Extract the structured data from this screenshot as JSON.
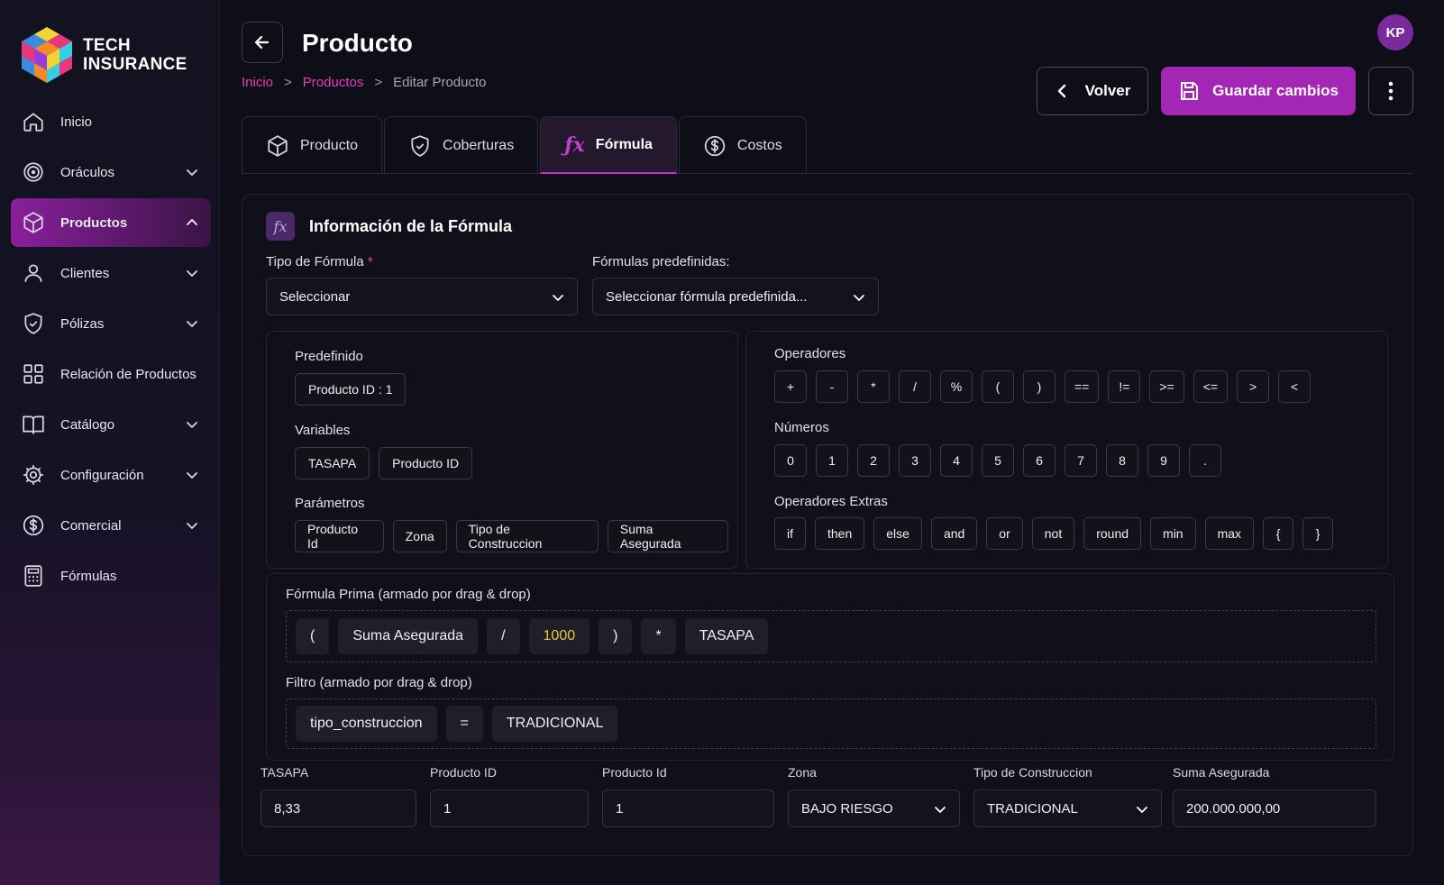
{
  "brand": {
    "line1": "TECH",
    "line2": "INSURANCE"
  },
  "sidebar": {
    "items": [
      {
        "label": "Inicio",
        "icon": "home-icon",
        "chevron": false,
        "active": false
      },
      {
        "label": "Oráculos",
        "icon": "target-icon",
        "chevron": true,
        "active": false
      },
      {
        "label": "Productos",
        "icon": "box-icon",
        "chevron": true,
        "active": true
      },
      {
        "label": "Clientes",
        "icon": "user-icon",
        "chevron": true,
        "active": false
      },
      {
        "label": "Pólizas",
        "icon": "shield-icon",
        "chevron": true,
        "active": false
      },
      {
        "label": "Relación de Productos",
        "icon": "grid-icon",
        "chevron": false,
        "active": false
      },
      {
        "label": "Catálogo",
        "icon": "book-icon",
        "chevron": true,
        "active": false
      },
      {
        "label": "Configuración",
        "icon": "gear-icon",
        "chevron": true,
        "active": false
      },
      {
        "label": "Comercial",
        "icon": "dollar-icon",
        "chevron": true,
        "active": false
      },
      {
        "label": "Fórmulas",
        "icon": "calculator-icon",
        "chevron": false,
        "active": false
      }
    ]
  },
  "header": {
    "title": "Producto",
    "breadcrumb": [
      "Inicio",
      "Productos",
      "Editar Producto"
    ],
    "avatar": "KP",
    "volver": "Volver",
    "save": "Guardar cambios"
  },
  "tabs": [
    {
      "label": "Producto",
      "icon": "box-icon",
      "active": false
    },
    {
      "label": "Coberturas",
      "icon": "shield-icon",
      "active": false
    },
    {
      "label": "Fórmula",
      "icon": "fx-icon",
      "active": true
    },
    {
      "label": "Costos",
      "icon": "dollar-icon",
      "active": false
    }
  ],
  "card": {
    "title": "Información de la Fórmula",
    "fx_badge": "fx",
    "tipo_label": "Tipo de Fórmula",
    "tipo_required": "*",
    "tipo_value": "Seleccionar",
    "predef_label": "Fórmulas predefinidas:",
    "predef_value": "Seleccionar fórmula predefinida...",
    "left": {
      "predefinido_label": "Predefinido",
      "predefinido": [
        "Producto ID : 1"
      ],
      "variables_label": "Variables",
      "variables": [
        "TASAPA",
        "Producto ID"
      ],
      "parametros_label": "Parámetros",
      "parametros": [
        "Producto Id",
        "Zona",
        "Tipo de Construccion",
        "Suma Asegurada"
      ]
    },
    "right": {
      "operadores_label": "Operadores",
      "operadores": [
        "+",
        "-",
        "*",
        "/",
        "%",
        "(",
        ")",
        "==",
        "!=",
        ">=",
        "<=",
        ">",
        "<"
      ],
      "numeros_label": "Números",
      "numeros": [
        "0",
        "1",
        "2",
        "3",
        "4",
        "5",
        "6",
        "7",
        "8",
        "9",
        "."
      ],
      "extras_label": "Operadores Extras",
      "extras": [
        "if",
        "then",
        "else",
        "and",
        "or",
        "not",
        "round",
        "min",
        "max",
        "{",
        "}"
      ]
    },
    "prima_label": "Fórmula Prima (armado por drag & drop)",
    "prima_tokens": [
      {
        "t": "(",
        "num": false
      },
      {
        "t": "Suma Asegurada",
        "num": false
      },
      {
        "t": "/",
        "num": false
      },
      {
        "t": "1000",
        "num": true
      },
      {
        "t": ")",
        "num": false
      },
      {
        "t": "*",
        "num": false
      },
      {
        "t": "TASAPA",
        "num": false
      }
    ],
    "filtro_label": "Filtro (armado por drag & drop)",
    "filtro_tokens": [
      "tipo_construccion",
      "=",
      "TRADICIONAL"
    ],
    "fields": [
      {
        "label": "TASAPA",
        "value": "8,33",
        "select": false
      },
      {
        "label": "Producto ID",
        "value": "1",
        "select": false
      },
      {
        "label": "Producto Id",
        "value": "1",
        "select": false
      },
      {
        "label": "Zona",
        "value": "BAJO RIESGO",
        "select": true
      },
      {
        "label": "Tipo de Construccion",
        "value": "TRADICIONAL",
        "select": true
      },
      {
        "label": "Suma Asegurada",
        "value": "200.000.000,00",
        "select": false
      }
    ]
  }
}
